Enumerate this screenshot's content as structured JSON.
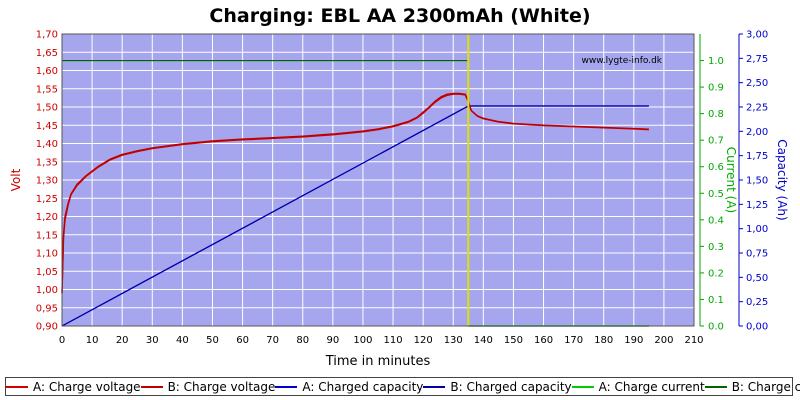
{
  "chart_data": {
    "type": "line",
    "title": "Charging: EBL AA 2300mAh (White)",
    "watermark": "www.lygte-info.dk",
    "xlabel": "Time in minutes",
    "x_axis": {
      "range": [
        0,
        210
      ],
      "ticks": [
        "0",
        "10",
        "20",
        "30",
        "40",
        "50",
        "60",
        "70",
        "80",
        "90",
        "100",
        "110",
        "120",
        "130",
        "140",
        "150",
        "160",
        "170",
        "180",
        "190",
        "200",
        "210"
      ]
    },
    "y_left": {
      "label": "Volt",
      "range": [
        0.9,
        1.7
      ],
      "color": "#cc0000",
      "ticks": [
        "0,90",
        "0,95",
        "1,00",
        "1,05",
        "1,10",
        "1,15",
        "1,20",
        "1,25",
        "1,30",
        "1,35",
        "1,40",
        "1,45",
        "1,50",
        "1,55",
        "1,60",
        "1,65",
        "1,70"
      ]
    },
    "y_right_current": {
      "label": "Current (A)",
      "range": [
        0.0,
        1.1
      ],
      "color": "#00aa00",
      "ticks": [
        "0.0",
        "0.1",
        "0.2",
        "0.3",
        "0.4",
        "0.5",
        "0.6",
        "0.7",
        "0.8",
        "0.9",
        "1.0"
      ]
    },
    "y_right_capacity": {
      "label": "Capacity (Ah)",
      "range": [
        0.0,
        3.0
      ],
      "color": "#0000cc",
      "ticks": [
        "0,00",
        "0,25",
        "0,50",
        "0,75",
        "1,00",
        "1,25",
        "1,50",
        "1,75",
        "2,00",
        "2,25",
        "2,50",
        "2,75",
        "3,00"
      ]
    },
    "grid": true,
    "series": [
      {
        "name": "A: Charge voltage",
        "axis": "volt",
        "color": "#d40000",
        "x": [
          0,
          0.5,
          1,
          2,
          3,
          5,
          8,
          12,
          16,
          20,
          25,
          30,
          40,
          50,
          60,
          70,
          80,
          90,
          100,
          105,
          110,
          115,
          118,
          120,
          122,
          124,
          126,
          128,
          130,
          132,
          134,
          135,
          136,
          138,
          140,
          145,
          150,
          160,
          170,
          180,
          190,
          195
        ],
        "values": [
          0.99,
          1.14,
          1.19,
          1.23,
          1.26,
          1.285,
          1.31,
          1.335,
          1.355,
          1.368,
          1.378,
          1.386,
          1.397,
          1.405,
          1.41,
          1.414,
          1.418,
          1.424,
          1.432,
          1.438,
          1.446,
          1.458,
          1.47,
          1.483,
          1.498,
          1.513,
          1.525,
          1.532,
          1.535,
          1.535,
          1.533,
          1.515,
          1.49,
          1.475,
          1.468,
          1.459,
          1.454,
          1.449,
          1.446,
          1.443,
          1.44,
          1.438
        ]
      },
      {
        "name": "B: Charge voltage",
        "axis": "volt",
        "color": "#bb0000",
        "x": [
          0,
          0.5,
          1,
          2,
          3,
          5,
          8,
          12,
          16,
          20,
          25,
          30,
          40,
          50,
          60,
          70,
          80,
          90,
          100,
          105,
          110,
          115,
          118,
          120,
          122,
          124,
          126,
          128,
          130,
          132,
          134,
          135,
          136,
          138,
          140,
          145,
          150,
          160,
          170,
          180,
          190,
          195
        ],
        "values": [
          0.99,
          1.15,
          1.2,
          1.235,
          1.262,
          1.288,
          1.312,
          1.337,
          1.357,
          1.37,
          1.38,
          1.388,
          1.399,
          1.407,
          1.412,
          1.416,
          1.42,
          1.426,
          1.434,
          1.44,
          1.448,
          1.46,
          1.472,
          1.486,
          1.5,
          1.516,
          1.528,
          1.535,
          1.537,
          1.537,
          1.535,
          1.516,
          1.49,
          1.476,
          1.469,
          1.46,
          1.455,
          1.45,
          1.447,
          1.444,
          1.441,
          1.439
        ]
      },
      {
        "name": "A: Charged capacity",
        "axis": "capacity",
        "color": "#0000cc",
        "x": [
          0,
          135,
          135.5,
          195
        ],
        "values": [
          0.0,
          2.26,
          2.26,
          2.26
        ]
      },
      {
        "name": "B: Charged capacity",
        "axis": "capacity",
        "color": "#0000aa",
        "x": [
          0,
          135,
          135.5,
          195
        ],
        "values": [
          0.0,
          2.26,
          2.26,
          2.26
        ]
      },
      {
        "name": "A: Charge current",
        "axis": "current",
        "color": "#00cc00",
        "x": [
          0,
          135,
          135,
          195
        ],
        "values": [
          1.0,
          1.0,
          0.0,
          0.0
        ]
      },
      {
        "name": "B: Charge current",
        "axis": "current",
        "color": "#006600",
        "x": [
          0,
          135,
          135,
          195
        ],
        "values": [
          1.0,
          1.0,
          0.0,
          0.0
        ]
      }
    ],
    "markers": [
      {
        "x": 135,
        "color": "#e0e000"
      }
    ]
  }
}
